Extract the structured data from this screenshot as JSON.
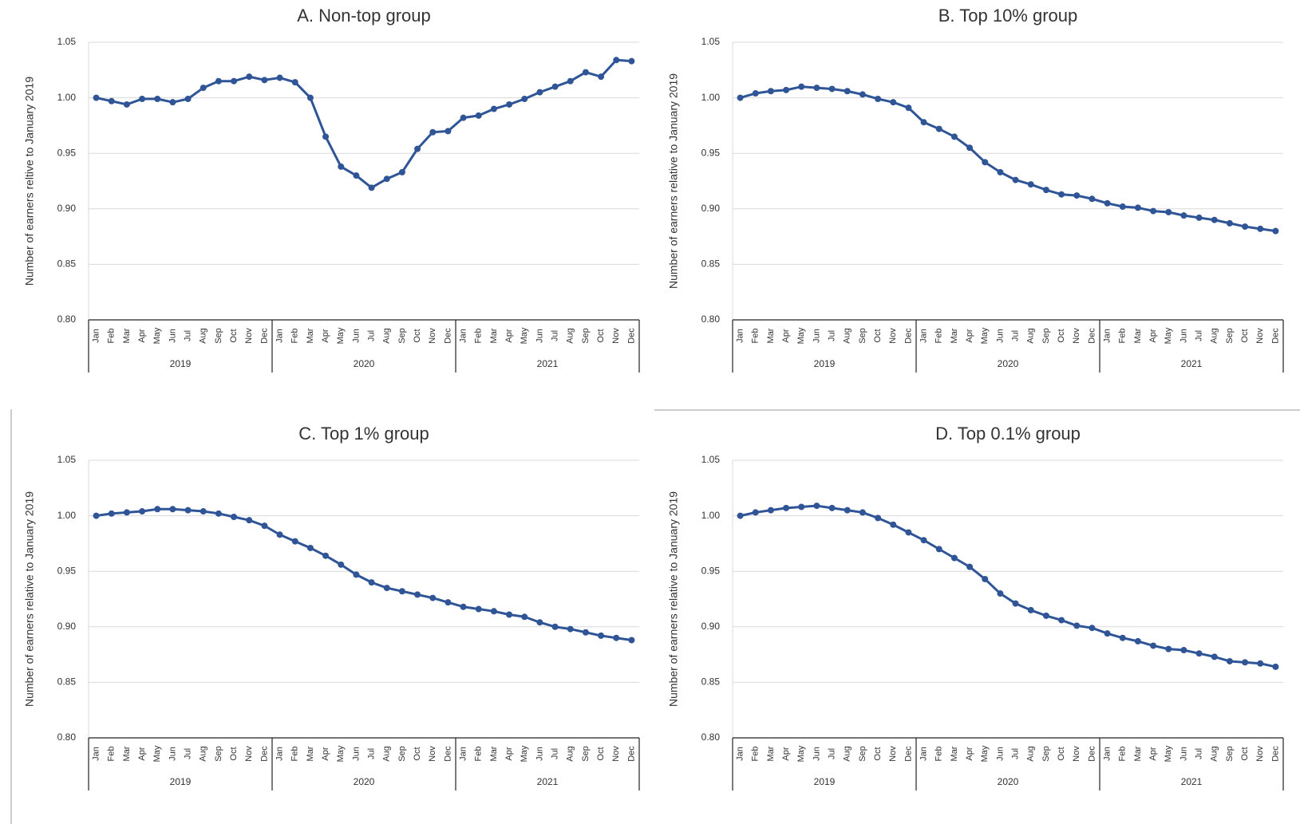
{
  "chart_data": [
    {
      "type": "line",
      "title": "A. Non-top group",
      "y_label": "Number of earners reltive to January 2019",
      "categories": [
        "Jan",
        "Feb",
        "Mar",
        "Apr",
        "May",
        "Jun",
        "Jul",
        "Aug",
        "Sep",
        "Oct",
        "Nov",
        "Dec",
        "Jan",
        "Feb",
        "Mar",
        "Apr",
        "May",
        "Jun",
        "Jul",
        "Aug",
        "Sep",
        "Oct",
        "Nov",
        "Dec",
        "Jan",
        "Feb",
        "Mar",
        "Apr",
        "May",
        "Jun",
        "Jul",
        "Aug",
        "Sep",
        "Oct",
        "Nov",
        "Dec"
      ],
      "groups": [
        "2019",
        "2020",
        "2021"
      ],
      "color": "#2f5597",
      "values": [
        1.0,
        0.997,
        0.994,
        0.999,
        0.999,
        0.996,
        0.999,
        1.009,
        1.015,
        1.015,
        1.019,
        1.016,
        1.018,
        1.014,
        1.0,
        0.965,
        0.938,
        0.93,
        0.919,
        0.927,
        0.933,
        0.954,
        0.969,
        0.97,
        0.982,
        0.984,
        0.99,
        0.994,
        0.999,
        1.005,
        1.01,
        1.015,
        1.023,
        1.019,
        1.034,
        1.033
      ],
      "ylim": [
        0.8,
        1.05
      ],
      "yticks": [
        {
          "value": 0.8,
          "label": "0.80"
        },
        {
          "value": 0.85,
          "label": "0.85"
        },
        {
          "value": 0.9,
          "label": "0.90"
        },
        {
          "value": 0.95,
          "label": "0.95"
        },
        {
          "value": 1.0,
          "label": "1.00"
        },
        {
          "value": 1.05,
          "label": "1.05"
        }
      ],
      "grid": true
    },
    {
      "type": "line",
      "title": "B. Top 10% group",
      "y_label": "Number of earners relative to January 2019",
      "categories": [
        "Jan",
        "Feb",
        "Mar",
        "Apr",
        "May",
        "Jun",
        "Jul",
        "Aug",
        "Sep",
        "Oct",
        "Nov",
        "Dec",
        "Jan",
        "Feb",
        "Mar",
        "Apr",
        "May",
        "Jun",
        "Jul",
        "Aug",
        "Sep",
        "Oct",
        "Nov",
        "Dec",
        "Jan",
        "Feb",
        "Mar",
        "Apr",
        "May",
        "Jun",
        "Jul",
        "Aug",
        "Sep",
        "Oct",
        "Nov",
        "Dec"
      ],
      "groups": [
        "2019",
        "2020",
        "2021"
      ],
      "color": "#2f5597",
      "values": [
        1.0,
        1.004,
        1.006,
        1.007,
        1.01,
        1.009,
        1.008,
        1.006,
        1.003,
        0.999,
        0.996,
        0.991,
        0.978,
        0.972,
        0.965,
        0.955,
        0.942,
        0.933,
        0.926,
        0.922,
        0.917,
        0.913,
        0.912,
        0.909,
        0.905,
        0.902,
        0.901,
        0.898,
        0.897,
        0.894,
        0.892,
        0.89,
        0.887,
        0.884,
        0.882,
        0.88
      ],
      "ylim": [
        0.8,
        1.05
      ],
      "yticks": [
        {
          "value": 0.8,
          "label": "0.80"
        },
        {
          "value": 0.85,
          "label": "0.85"
        },
        {
          "value": 0.9,
          "label": "0.90"
        },
        {
          "value": 0.95,
          "label": "0.95"
        },
        {
          "value": 1.0,
          "label": "1.00"
        },
        {
          "value": 1.05,
          "label": "1.05"
        }
      ],
      "grid": true
    },
    {
      "type": "line",
      "title": "C. Top 1% group",
      "y_label": "Number of earners relative to January 2019",
      "categories": [
        "Jan",
        "Feb",
        "Mar",
        "Apr",
        "May",
        "Jun",
        "Jul",
        "Aug",
        "Sep",
        "Oct",
        "Nov",
        "Dec",
        "Jan",
        "Feb",
        "Mar",
        "Apr",
        "May",
        "Jun",
        "Jul",
        "Aug",
        "Sep",
        "Oct",
        "Nov",
        "Dec",
        "Jan",
        "Feb",
        "Mar",
        "Apr",
        "May",
        "Jun",
        "Jul",
        "Aug",
        "Sep",
        "Oct",
        "Nov",
        "Dec"
      ],
      "groups": [
        "2019",
        "2020",
        "2021"
      ],
      "color": "#2f5597",
      "values": [
        1.0,
        1.002,
        1.003,
        1.004,
        1.006,
        1.006,
        1.005,
        1.004,
        1.002,
        0.999,
        0.996,
        0.991,
        0.983,
        0.977,
        0.971,
        0.964,
        0.956,
        0.947,
        0.94,
        0.935,
        0.932,
        0.929,
        0.926,
        0.922,
        0.918,
        0.916,
        0.914,
        0.911,
        0.909,
        0.904,
        0.9,
        0.898,
        0.895,
        0.892,
        0.89,
        0.888
      ],
      "ylim": [
        0.8,
        1.05
      ],
      "yticks": [
        {
          "value": 0.8,
          "label": "0.80"
        },
        {
          "value": 0.85,
          "label": "0.85"
        },
        {
          "value": 0.9,
          "label": "0.90"
        },
        {
          "value": 0.95,
          "label": "0.95"
        },
        {
          "value": 1.0,
          "label": "1.00"
        },
        {
          "value": 1.05,
          "label": "1.05"
        }
      ],
      "grid": true
    },
    {
      "type": "line",
      "title": "D. Top 0.1% group",
      "y_label": "Number of earners relative to January 2019",
      "categories": [
        "Jan",
        "Feb",
        "Mar",
        "Apr",
        "May",
        "Jun",
        "Jul",
        "Aug",
        "Sep",
        "Oct",
        "Nov",
        "Dec",
        "Jan",
        "Feb",
        "Mar",
        "Apr",
        "May",
        "Jun",
        "Jul",
        "Aug",
        "Sep",
        "Oct",
        "Nov",
        "Dec",
        "Jan",
        "Feb",
        "Mar",
        "Apr",
        "May",
        "Jun",
        "Jul",
        "Aug",
        "Sep",
        "Oct",
        "Nov",
        "Dec"
      ],
      "groups": [
        "2019",
        "2020",
        "2021"
      ],
      "color": "#2f5597",
      "values": [
        1.0,
        1.003,
        1.005,
        1.007,
        1.008,
        1.009,
        1.007,
        1.005,
        1.003,
        0.998,
        0.992,
        0.985,
        0.978,
        0.97,
        0.962,
        0.954,
        0.943,
        0.93,
        0.921,
        0.915,
        0.91,
        0.906,
        0.901,
        0.899,
        0.894,
        0.89,
        0.887,
        0.883,
        0.88,
        0.879,
        0.876,
        0.873,
        0.869,
        0.868,
        0.867,
        0.864
      ],
      "ylim": [
        0.8,
        1.05
      ],
      "yticks": [
        {
          "value": 0.8,
          "label": "0.80"
        },
        {
          "value": 0.85,
          "label": "0.85"
        },
        {
          "value": 0.9,
          "label": "0.90"
        },
        {
          "value": 0.95,
          "label": "0.95"
        },
        {
          "value": 1.0,
          "label": "1.00"
        },
        {
          "value": 1.05,
          "label": "1.05"
        }
      ],
      "grid": true
    }
  ]
}
